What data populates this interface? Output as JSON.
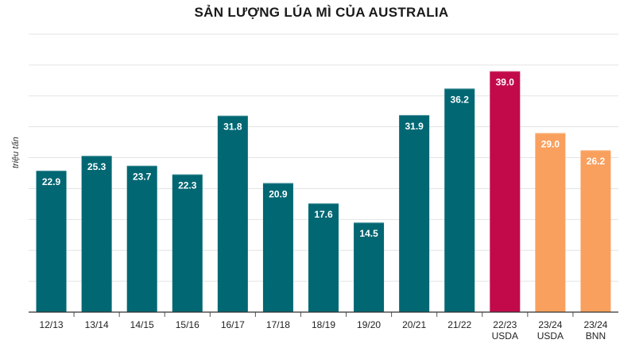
{
  "chart_data": {
    "type": "bar",
    "title": "SẢN LƯỢNG LÚA MÌ CỦA AUSTRALIA",
    "ylabel": "triệu tấn",
    "xlabel": "",
    "ylim": [
      0,
      45
    ],
    "grid": true,
    "categories": [
      [
        "12/13"
      ],
      [
        "13/14"
      ],
      [
        "14/15"
      ],
      [
        "15/16"
      ],
      [
        "16/17"
      ],
      [
        "17/18"
      ],
      [
        "18/19"
      ],
      [
        "19/20"
      ],
      [
        "20/21"
      ],
      [
        "21/22"
      ],
      [
        "22/23",
        "USDA"
      ],
      [
        "23/24",
        "USDA"
      ],
      [
        "23/24",
        "BNN"
      ]
    ],
    "values": [
      22.9,
      25.3,
      23.7,
      22.3,
      31.8,
      20.9,
      17.6,
      14.5,
      31.9,
      36.2,
      39.0,
      29.0,
      26.2
    ],
    "value_labels": [
      "22.9",
      "25.3",
      "23.7",
      "22.3",
      "31.8",
      "20.9",
      "17.6",
      "14.5",
      "31.9",
      "36.2",
      "39.0",
      "29.0",
      "26.2"
    ],
    "bar_colors": [
      "#006773",
      "#006773",
      "#006773",
      "#006773",
      "#006773",
      "#006773",
      "#006773",
      "#006773",
      "#006773",
      "#006773",
      "#c20a4a",
      "#f9a05e",
      "#f9a05e"
    ]
  }
}
